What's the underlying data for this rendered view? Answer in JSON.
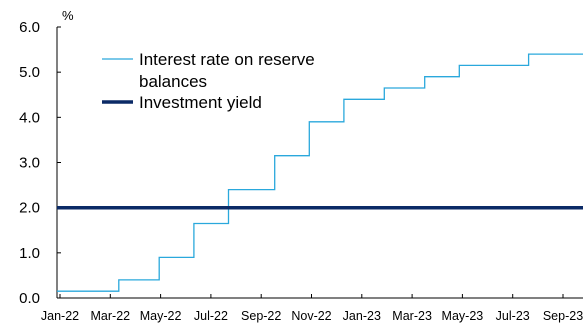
{
  "chart_data": {
    "type": "line",
    "unit_label": "%",
    "ylim": [
      0,
      6
    ],
    "y_ticks": [
      "0.0",
      "1.0",
      "2.0",
      "3.0",
      "4.0",
      "5.0",
      "6.0"
    ],
    "x_tick_labels": [
      "Jan-22",
      "Mar-22",
      "May-22",
      "Jul-22",
      "Sep-22",
      "Nov-22",
      "Jan-23",
      "Mar-23",
      "May-23",
      "Jul-23",
      "Sep-23"
    ],
    "x_range": [
      "2022-01-01",
      "2023-10-01"
    ],
    "grid": false,
    "legend_position": "top-left",
    "series": [
      {
        "name": "Interest rate on reserve balances",
        "name_lines": [
          "Interest rate on reserve",
          "balances"
        ],
        "color": "#2AA8DC",
        "style": "step",
        "points": [
          {
            "x": "2022-01-01",
            "y": 0.15
          },
          {
            "x": "2022-03-17",
            "y": 0.4
          },
          {
            "x": "2022-05-05",
            "y": 0.9
          },
          {
            "x": "2022-06-16",
            "y": 1.65
          },
          {
            "x": "2022-07-28",
            "y": 2.4
          },
          {
            "x": "2022-09-22",
            "y": 3.15
          },
          {
            "x": "2022-11-03",
            "y": 3.9
          },
          {
            "x": "2022-12-15",
            "y": 4.4
          },
          {
            "x": "2023-02-02",
            "y": 4.65
          },
          {
            "x": "2023-03-23",
            "y": 4.9
          },
          {
            "x": "2023-05-04",
            "y": 5.15
          },
          {
            "x": "2023-07-27",
            "y": 5.4
          },
          {
            "x": "2023-10-01",
            "y": 5.4
          }
        ]
      },
      {
        "name": "Investment yield",
        "name_lines": [
          "Investment yield"
        ],
        "color": "#0B2A66",
        "style": "flat",
        "points": [
          {
            "x": "2022-01-01",
            "y": 2.0
          },
          {
            "x": "2023-10-01",
            "y": 2.0
          }
        ]
      }
    ]
  }
}
